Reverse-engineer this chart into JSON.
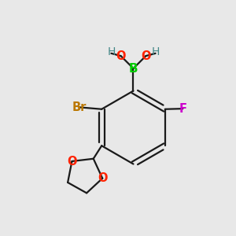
{
  "background_color": "#e8e8e8",
  "figsize": [
    3.0,
    3.0
  ],
  "dpi": 100,
  "atom_colors": {
    "B": "#00cc00",
    "O": "#ff2200",
    "H": "#448888",
    "Br": "#bb7700",
    "F": "#cc00cc",
    "C": "#000000",
    "bond": "#1a1a1a"
  },
  "bond_width": 1.6,
  "font_size": 10.5
}
